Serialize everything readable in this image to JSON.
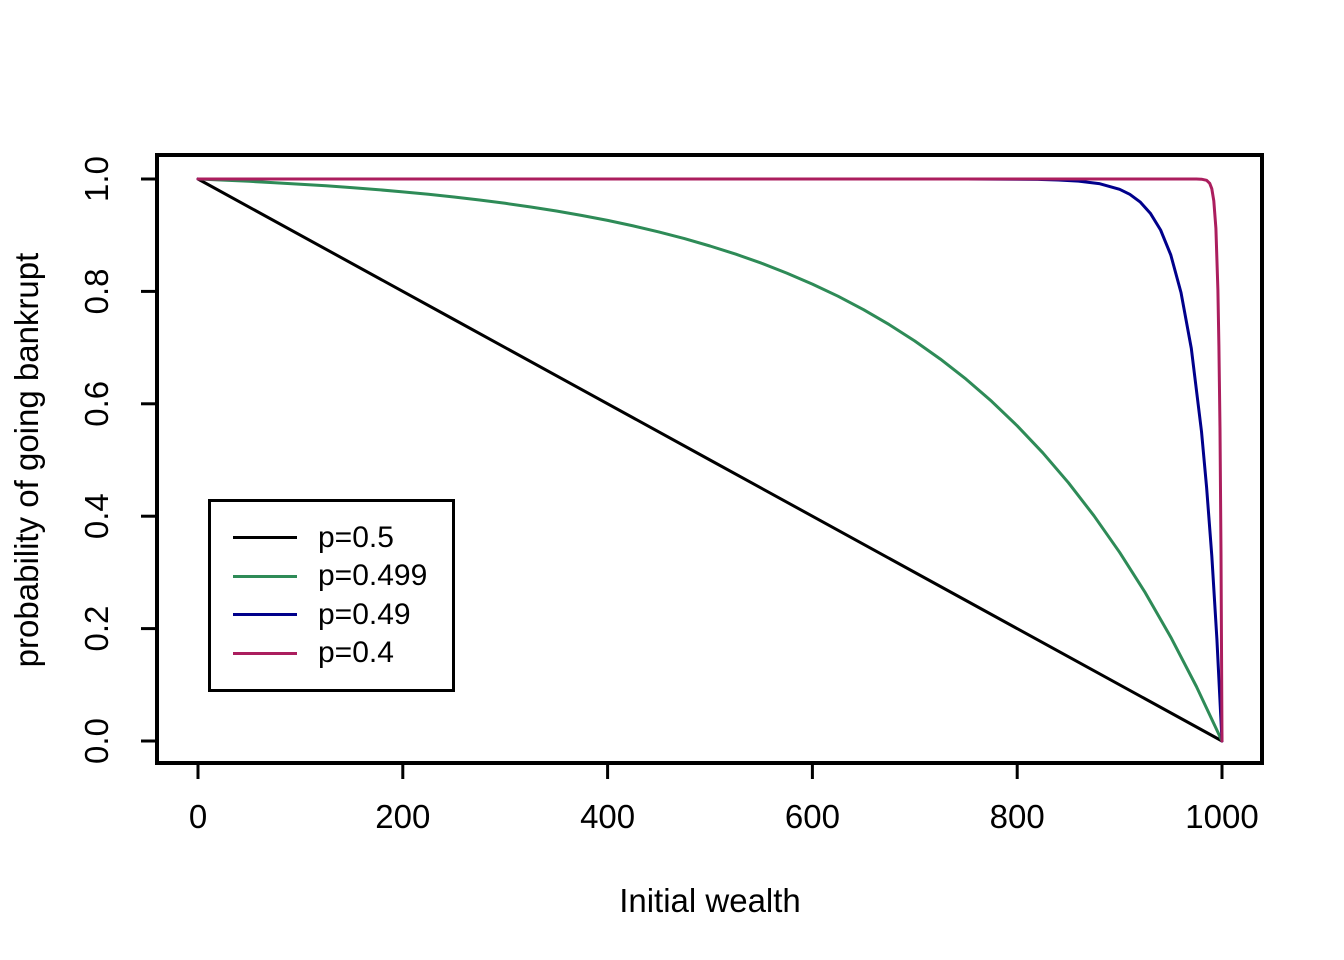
{
  "chart_data": {
    "type": "line",
    "title": "",
    "xlabel": "Initial wealth",
    "ylabel": "probability of going bankrupt",
    "xlim": [
      0,
      1000
    ],
    "ylim": [
      0.0,
      1.0
    ],
    "x_ticks": [
      0,
      200,
      400,
      600,
      800,
      1000
    ],
    "x_tick_labels": [
      "0",
      "200",
      "400",
      "600",
      "800",
      "1000"
    ],
    "y_ticks": [
      0.0,
      0.2,
      0.4,
      0.6,
      0.8,
      1.0
    ],
    "y_tick_labels": [
      "0.0",
      "0.2",
      "0.4",
      "0.6",
      "0.8",
      "1.0"
    ],
    "grid": false,
    "legend_position": "inside-middle-left",
    "axis_color": "#000000",
    "background_color": "#ffffff",
    "series": [
      {
        "name": "p=0.5",
        "color": "#000000",
        "x": [
          0,
          250,
          500,
          750,
          1000
        ],
        "y": [
          1.0,
          0.75,
          0.5,
          0.25,
          0.0
        ]
      },
      {
        "name": "p=0.499",
        "color": "#2e8b57",
        "x": [
          0,
          25,
          50,
          75,
          100,
          125,
          150,
          175,
          200,
          225,
          250,
          275,
          300,
          325,
          350,
          375,
          400,
          425,
          450,
          475,
          500,
          525,
          550,
          575,
          600,
          625,
          650,
          675,
          700,
          725,
          750,
          775,
          800,
          825,
          850,
          875,
          900,
          925,
          950,
          975,
          1000
        ],
        "y": [
          1.0,
          0.998,
          0.9959,
          0.9935,
          0.9908,
          0.9879,
          0.9847,
          0.9811,
          0.9771,
          0.9728,
          0.9679,
          0.9626,
          0.9567,
          0.9502,
          0.943,
          0.935,
          0.9263,
          0.9165,
          0.9058,
          0.8939,
          0.8808,
          0.8663,
          0.8503,
          0.8326,
          0.813,
          0.7914,
          0.7675,
          0.741,
          0.7118,
          0.6796,
          0.6439,
          0.6045,
          0.5609,
          0.5128,
          0.4596,
          0.4008,
          0.3358,
          0.264,
          0.1847,
          0.0969,
          0.0
        ]
      },
      {
        "name": "p=0.49",
        "color": "#00008b",
        "x": [
          0,
          100,
          200,
          300,
          400,
          500,
          600,
          700,
          750,
          800,
          820,
          840,
          860,
          880,
          900,
          910,
          920,
          930,
          940,
          950,
          960,
          970,
          980,
          985,
          990,
          995,
          1000
        ],
        "y": [
          1.0,
          1.0,
          1.0,
          1.0,
          1.0,
          1.0,
          1.0,
          0.99999,
          0.99995,
          0.9997,
          0.9993,
          0.9983,
          0.9963,
          0.9918,
          0.9817,
          0.9727,
          0.9592,
          0.9392,
          0.9093,
          0.8647,
          0.7981,
          0.6988,
          0.5507,
          0.4512,
          0.3297,
          0.1813,
          0.0
        ]
      },
      {
        "name": "p=0.4",
        "color": "#ab1e5e",
        "x": [
          0,
          200,
          400,
          600,
          800,
          900,
          950,
          970,
          975,
          980,
          985,
          988,
          990,
          992,
          994,
          996,
          997,
          998,
          999,
          1000
        ],
        "y": [
          1.0,
          1.0,
          1.0,
          1.0,
          1.0,
          1.0,
          1.0,
          0.99999,
          0.99996,
          0.9997,
          0.9977,
          0.9923,
          0.9827,
          0.961,
          0.9122,
          0.8025,
          0.7037,
          0.5556,
          0.3333,
          0.0
        ]
      }
    ]
  }
}
